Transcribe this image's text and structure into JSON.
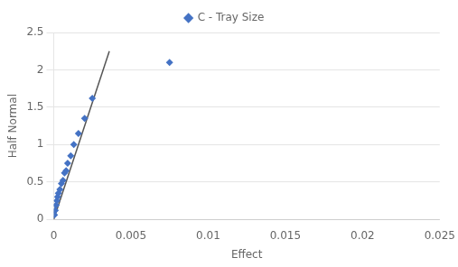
{
  "chart_data": {
    "type": "scatter",
    "xlabel": "Effect",
    "ylabel": "Half Normal",
    "xlim": [
      0,
      0.025
    ],
    "ylim": [
      0,
      2.5
    ],
    "xticks": [
      0,
      0.005,
      0.01,
      0.015,
      0.02,
      0.025
    ],
    "yticks": [
      0,
      0.5,
      1,
      1.5,
      2,
      2.5
    ],
    "grid": "y",
    "legend": "top",
    "series": [
      {
        "type": "line",
        "color": "#555555",
        "line_style": "solid",
        "x": [
          0.0,
          0.0036
        ],
        "values": [
          0.0,
          2.25
        ]
      },
      {
        "type": "scatter",
        "color": "#4472C4",
        "marker": "diamond",
        "x": [
          5e-05,
          0.0001,
          0.00015,
          0.0002,
          0.00025,
          0.0003,
          0.0004,
          0.0005,
          0.0006,
          0.0007,
          0.0008,
          0.0009,
          0.0011,
          0.0013,
          0.0016,
          0.002,
          0.0025
        ],
        "values": [
          0.06,
          0.12,
          0.19,
          0.25,
          0.3,
          0.35,
          0.4,
          0.48,
          0.52,
          0.62,
          0.65,
          0.75,
          0.85,
          1.0,
          1.15,
          1.35,
          1.62
        ]
      },
      {
        "type": "scatter",
        "name": "C - Tray Size",
        "color": "#4472C4",
        "marker": "diamond",
        "x": [
          0.0075
        ],
        "values": [
          2.1
        ]
      }
    ]
  }
}
